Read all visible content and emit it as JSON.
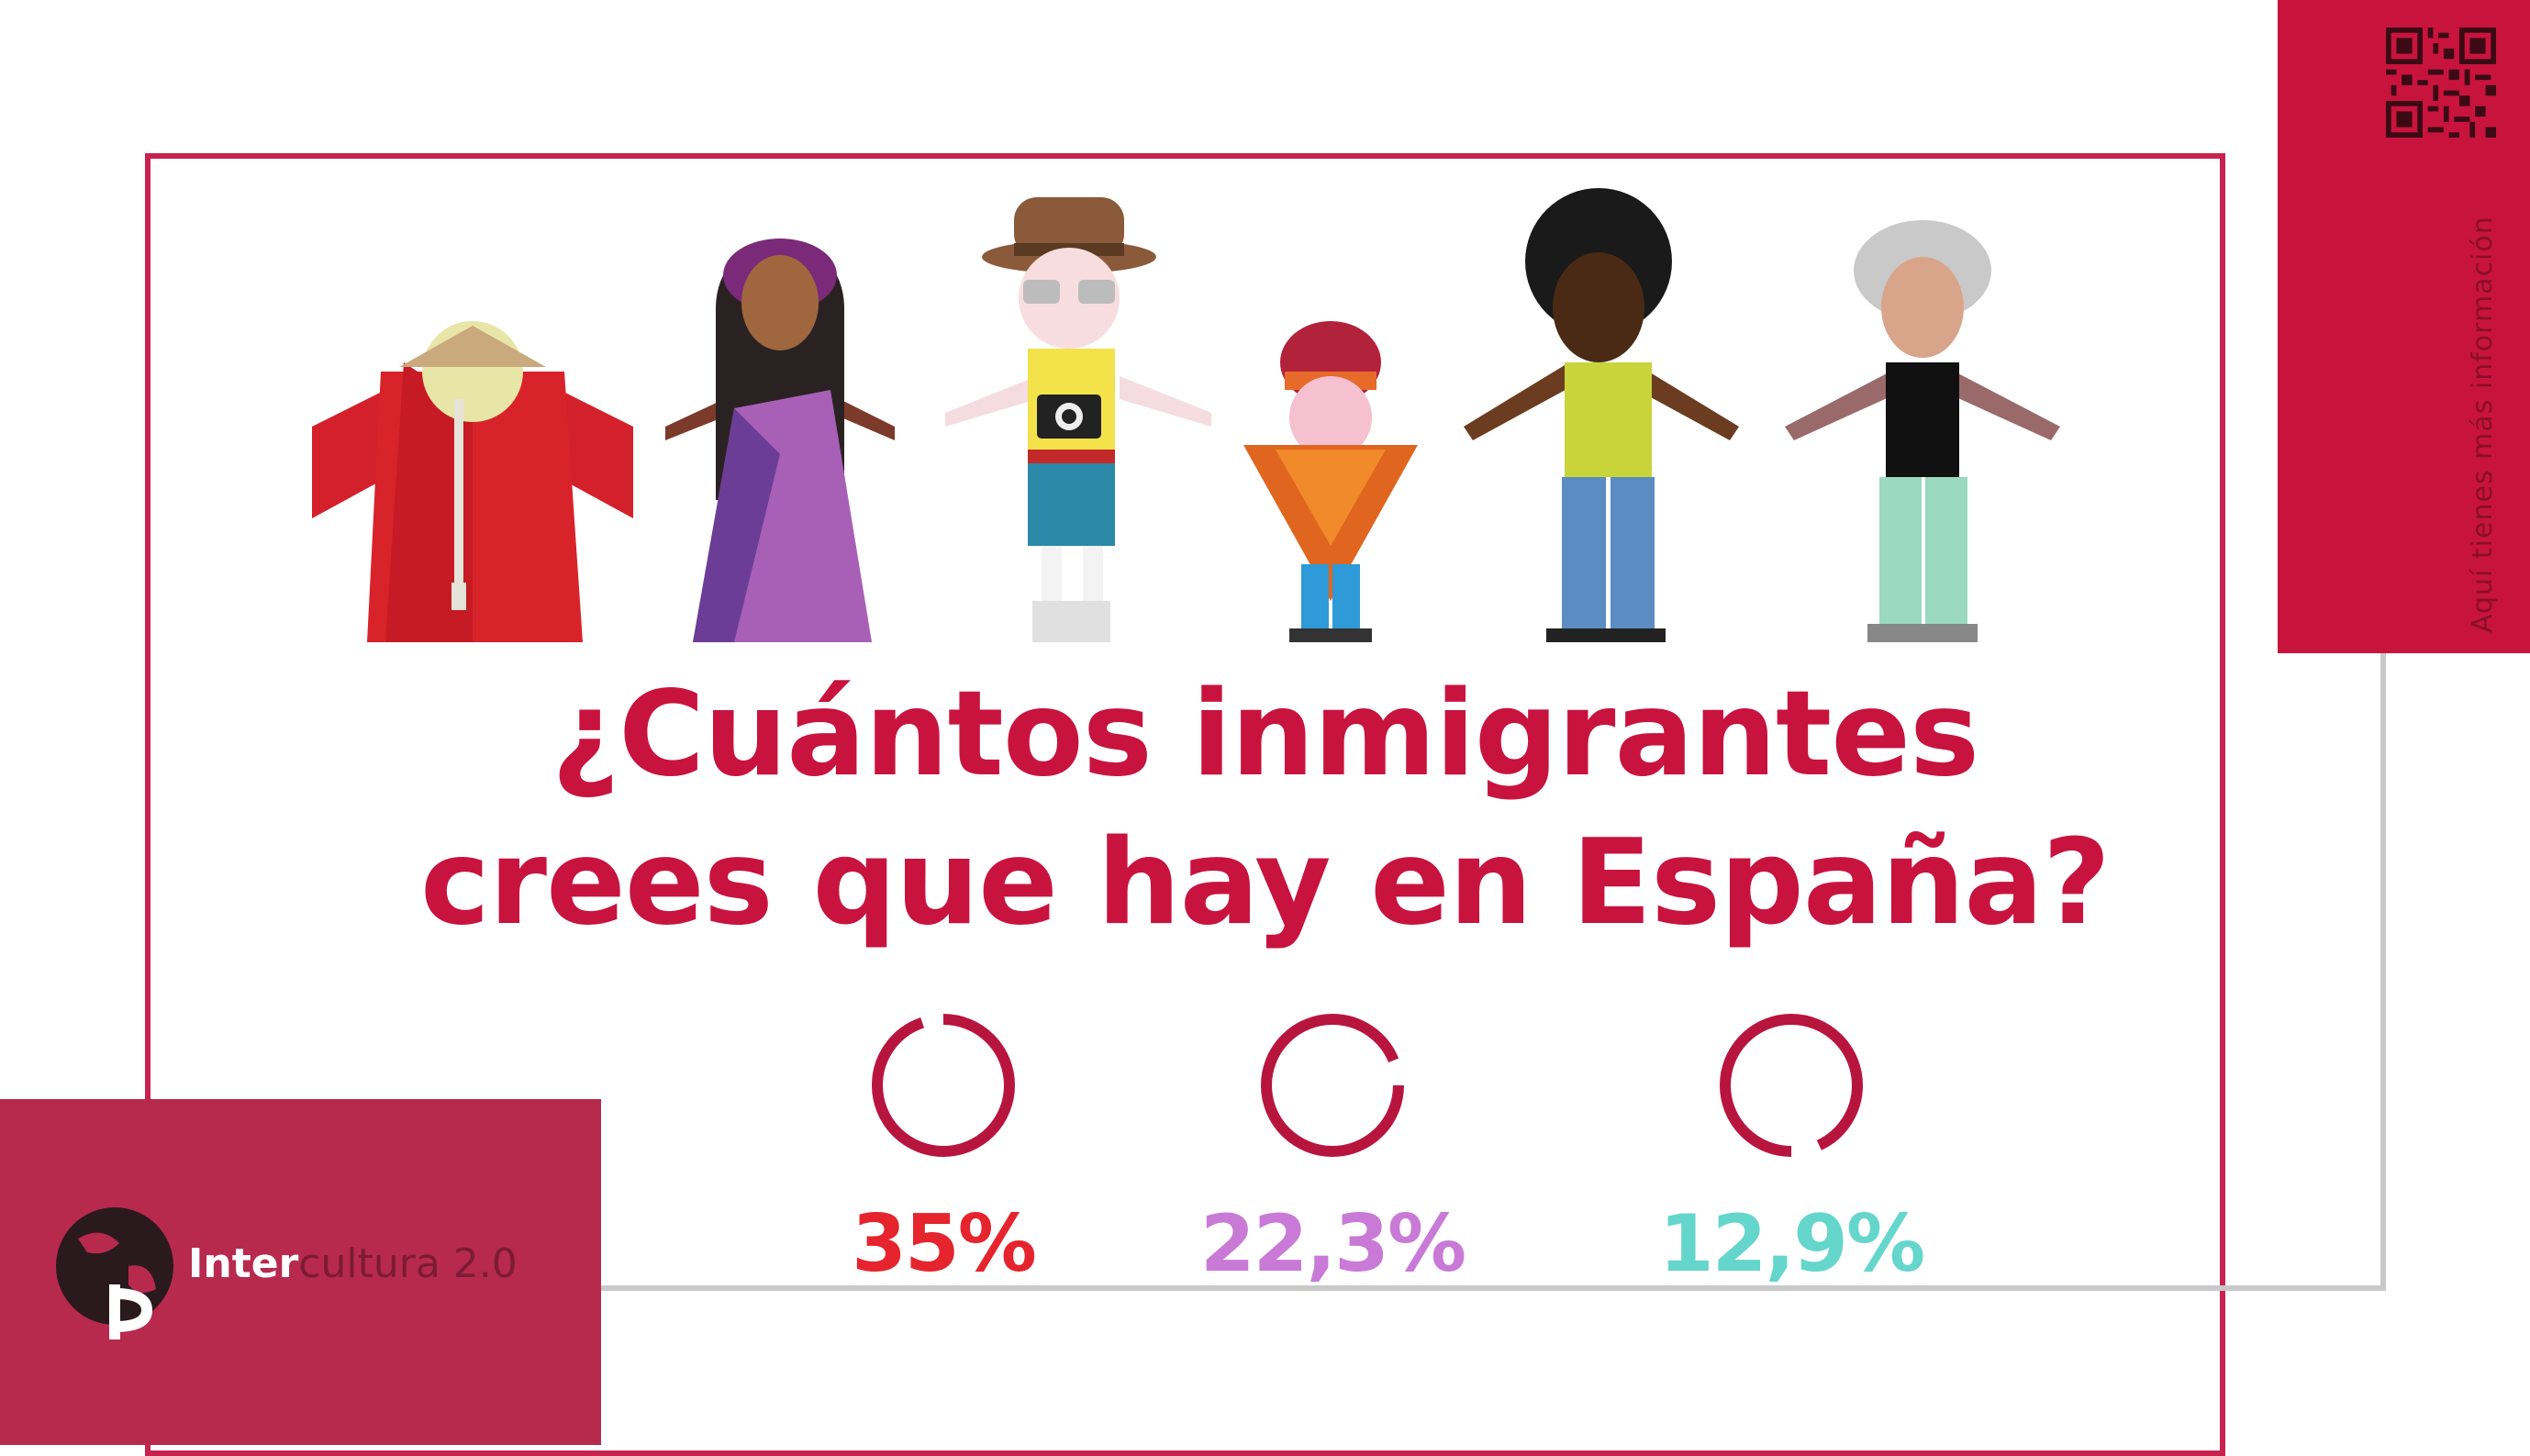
{
  "heading": {
    "line1": "¿Cuántos inmigrantes",
    "line2": "crees que hay en España?"
  },
  "stats": [
    {
      "label": "35%",
      "value": 35,
      "color": "#e5242d"
    },
    {
      "label": "22,3%",
      "value": 22.3,
      "color": "#c97ad6"
    },
    {
      "label": "12,9%",
      "value": 12.9,
      "color": "#64d6cb"
    }
  ],
  "ring_color": "#b8153e",
  "brand": {
    "name_bold": "Inter",
    "name_light": "cultura 2.0"
  },
  "qr_caption": "Aquí tienes más información",
  "colors": {
    "accent": "#c8143c",
    "panel": "#b8294e",
    "frame_gray": "#c9c9c9"
  },
  "icons": [
    "qr-code-icon",
    "globe-logo-icon",
    "camera-icon"
  ]
}
